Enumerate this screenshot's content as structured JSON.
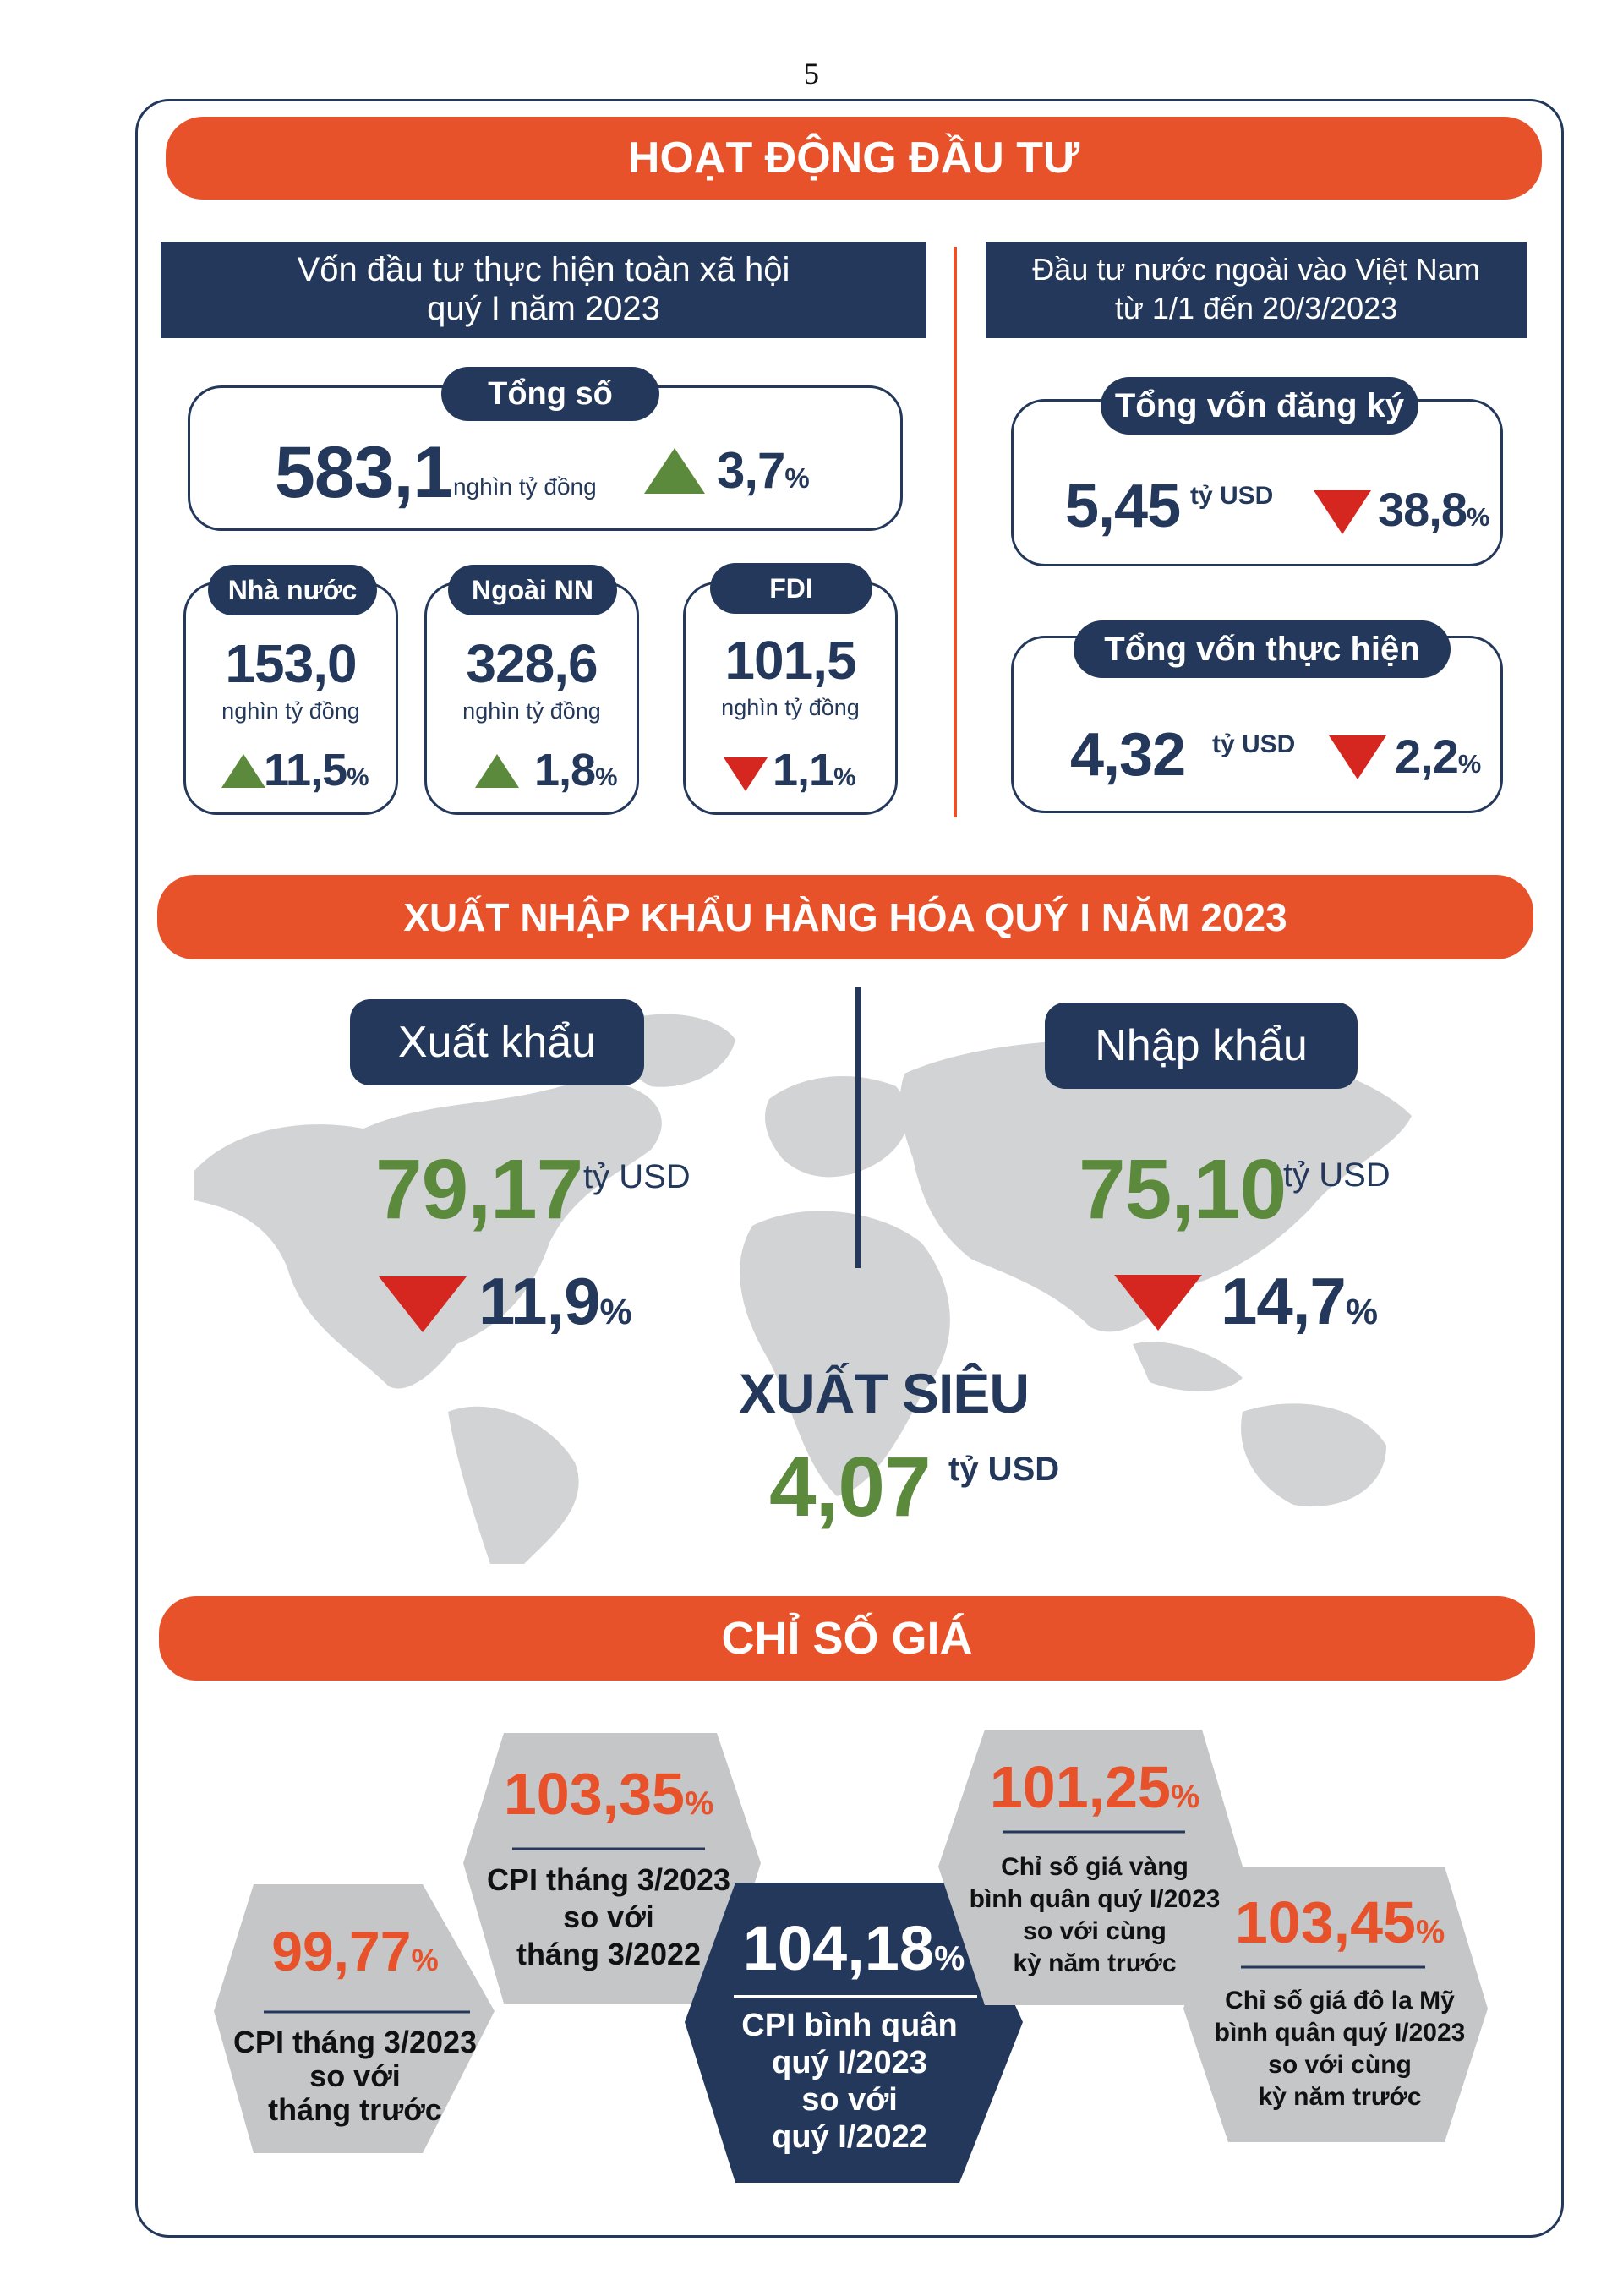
{
  "page_number": "5",
  "investment": {
    "banner": "HOẠT ĐỘNG ĐẦU TƯ",
    "left_header_line1": "Vốn đầu tư thực hiện toàn xã hội",
    "left_header_line2": "quý I năm 2023",
    "right_header_line1": "Đầu tư nước ngoài vào Việt Nam",
    "right_header_line2": "từ 1/1 đến 20/3/2023",
    "total": {
      "label": "Tổng số",
      "value": "583,1",
      "unit": "nghìn tỷ đồng",
      "change": "3,7",
      "pct": "%",
      "direction": "up"
    },
    "parts": [
      {
        "label": "Nhà nước",
        "value": "153,0",
        "unit": "nghìn tỷ đồng",
        "change": "11,5",
        "pct": "%",
        "direction": "up"
      },
      {
        "label": "Ngoài NN",
        "value": "328,6",
        "unit": "nghìn tỷ đồng",
        "change": "1,8",
        "pct": "%",
        "direction": "up"
      },
      {
        "label": "FDI",
        "value": "101,5",
        "unit": "nghìn tỷ đồng",
        "change": "1,1",
        "pct": "%",
        "direction": "down"
      }
    ],
    "fdi_registered": {
      "label": "Tổng vốn đăng ký",
      "value": "5,45",
      "unit": "tỷ USD",
      "change": "38,8",
      "pct": "%",
      "direction": "down"
    },
    "fdi_disbursed": {
      "label": "Tổng vốn thực hiện",
      "value": "4,32",
      "unit": "tỷ USD",
      "change": "2,2",
      "pct": "%",
      "direction": "down"
    }
  },
  "trade": {
    "banner": "XUẤT NHẬP KHẨU HÀNG HÓA QUÝ I NĂM 2023",
    "export": {
      "label": "Xuất khẩu",
      "value": "79,17",
      "unit": "tỷ USD",
      "change": "11,9",
      "pct": "%",
      "direction": "down"
    },
    "import": {
      "label": "Nhập khẩu",
      "value": "75,10",
      "unit": "tỷ USD",
      "change": "14,7",
      "pct": "%",
      "direction": "down"
    },
    "surplus": {
      "label": "XUẤT SIÊU",
      "value": "4,07",
      "unit": "tỷ USD"
    }
  },
  "prices": {
    "banner": "CHỈ SỐ GIÁ",
    "items": [
      {
        "value": "99,77",
        "pct": "%",
        "line1": "CPI tháng 3/2023",
        "line2": "so với",
        "line3": "tháng trước"
      },
      {
        "value": "103,35",
        "pct": "%",
        "line1": "CPI tháng 3/2023",
        "line2": "so với",
        "line3": "tháng 3/2022"
      },
      {
        "value": "104,18",
        "pct": "%",
        "line1": "CPI bình quân",
        "line2": "quý I/2023",
        "line3": "so với",
        "line4": "quý I/2022"
      },
      {
        "value": "101,25",
        "pct": "%",
        "line1": "Chỉ số giá vàng",
        "line2": "bình quân quý I/2023",
        "line3": "so với cùng",
        "line4": "kỳ năm trước"
      },
      {
        "value": "103,45",
        "pct": "%",
        "line1": "Chỉ số giá đô la Mỹ",
        "line2": "bình quân quý I/2023",
        "line3": "so với cùng",
        "line4": "kỳ năm trước"
      }
    ]
  },
  "colors": {
    "accent": "#e8522a",
    "navy": "#23385a",
    "up": "#5b8a3c",
    "down": "#d5261f",
    "hex_gray": "#c4c6c8",
    "map_gray": "#d2d3d5"
  }
}
